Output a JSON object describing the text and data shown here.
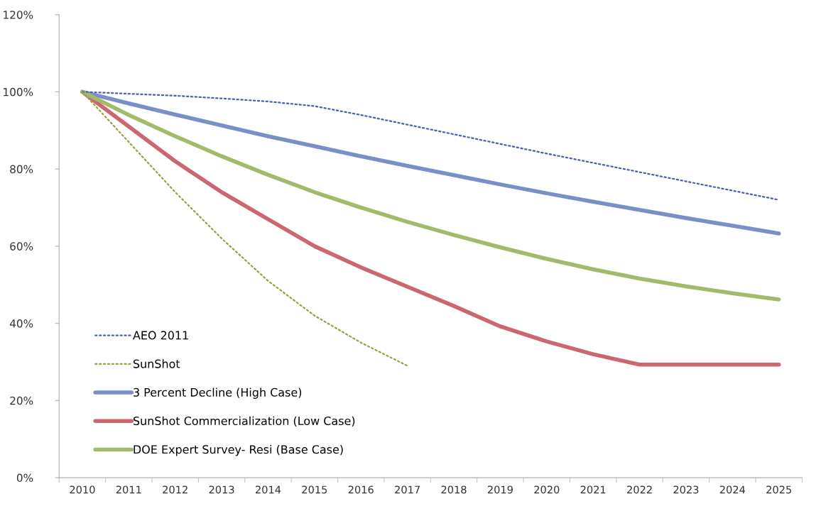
{
  "chart_data": {
    "type": "line",
    "categories": [
      "2010",
      "2011",
      "2012",
      "2013",
      "2014",
      "2015",
      "2016",
      "2017",
      "2018",
      "2019",
      "2020",
      "2021",
      "2022",
      "2023",
      "2024",
      "2025"
    ],
    "series": [
      {
        "name": "AEO 2011",
        "color": "#4a5fb0",
        "line_style": "dotted",
        "values": [
          100,
          99.5,
          99,
          98.3,
          97.5,
          96.3,
          94,
          91.5,
          89,
          86.5,
          84,
          81.6,
          79.2,
          76.8,
          74.4,
          72
        ]
      },
      {
        "name": "SunShot",
        "color": "#9aa040",
        "line_style": "dotted",
        "values": [
          100,
          87,
          74,
          62,
          51,
          42,
          35,
          29,
          null,
          null,
          null,
          null,
          null,
          null,
          null,
          null
        ]
      },
      {
        "name": "3 Percent Decline (High Case)",
        "color": "#7a8fc8",
        "line_style": "solid",
        "values": [
          100,
          97,
          94.1,
          91.3,
          88.5,
          85.9,
          83.3,
          80.8,
          78.4,
          76,
          73.7,
          71.5,
          69.4,
          67.3,
          65.3,
          63.3
        ]
      },
      {
        "name": "SunShot Commercialization (Low Case)",
        "color": "#cc6670",
        "line_style": "solid",
        "values": [
          100,
          91,
          82,
          74,
          67,
          60,
          54.5,
          49.5,
          44.5,
          39.2,
          35.3,
          32,
          29.3,
          29.3,
          29.3,
          29.3
        ]
      },
      {
        "name": "DOE Expert Survey- Resi (Base Case)",
        "color": "#a2bb6a",
        "line_style": "solid",
        "values": [
          100,
          94,
          88.5,
          83.3,
          78.5,
          74,
          70,
          66.3,
          62.9,
          59.7,
          56.7,
          54,
          51.6,
          49.6,
          47.8,
          46.2
        ]
      }
    ],
    "ylim": [
      0,
      120
    ],
    "yticks": [
      {
        "value": 0,
        "label": "0%"
      },
      {
        "value": 20,
        "label": "20%"
      },
      {
        "value": 40,
        "label": "40%"
      },
      {
        "value": 60,
        "label": "60%"
      },
      {
        "value": 80,
        "label": "80%"
      },
      {
        "value": 100,
        "label": "100%"
      },
      {
        "value": 120,
        "label": "120%"
      }
    ],
    "grid": false,
    "legend": "bottom left",
    "marker": "none"
  }
}
